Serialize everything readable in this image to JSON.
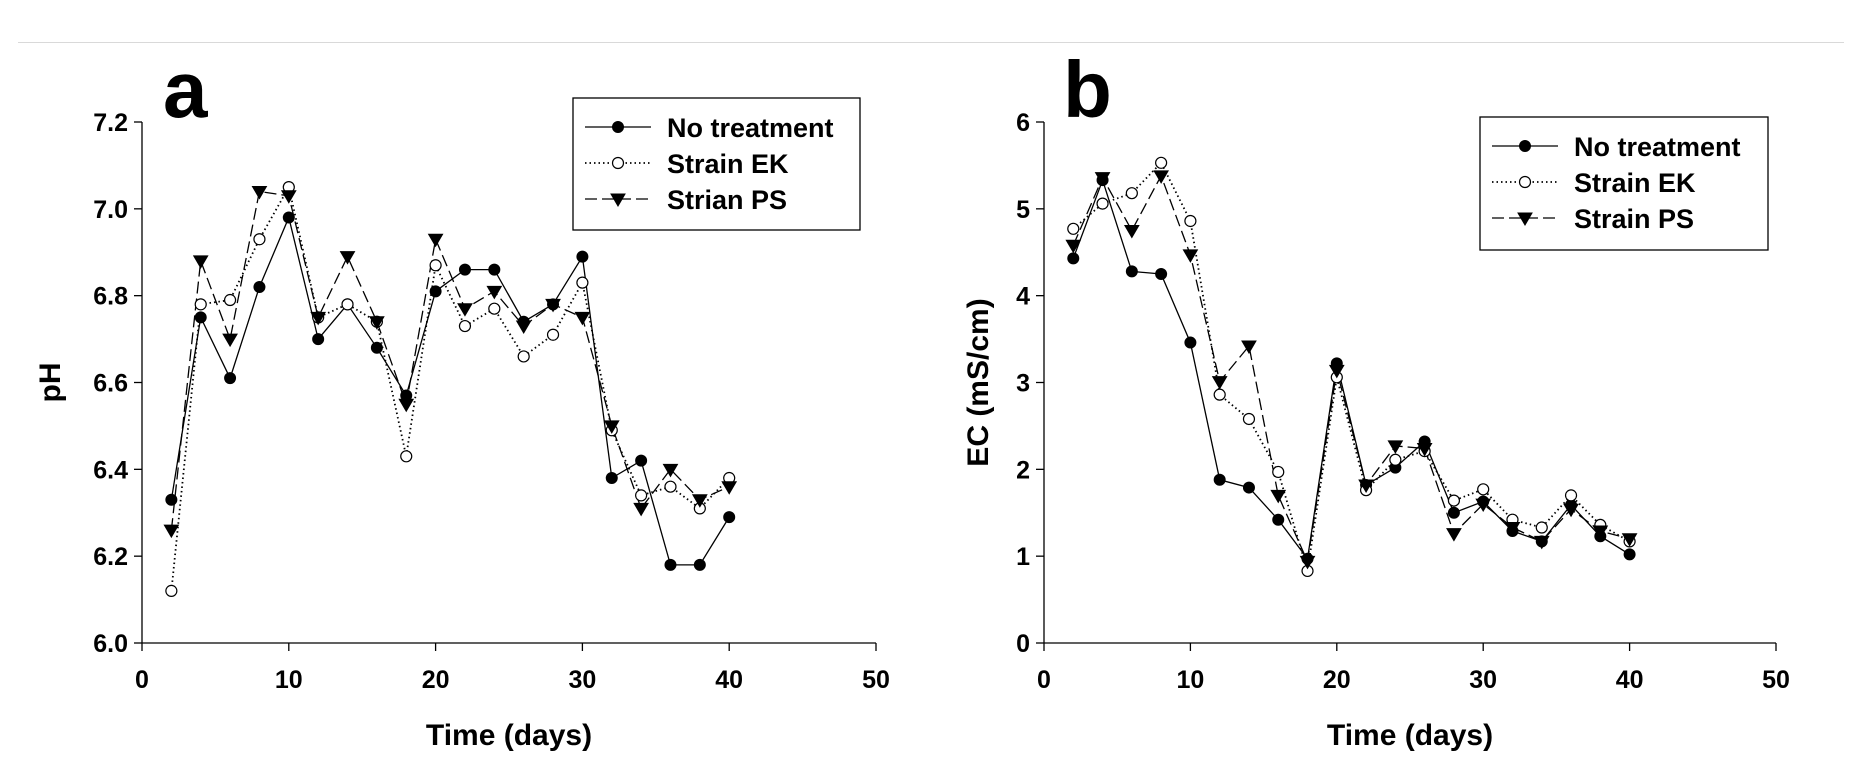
{
  "chart_data": [
    {
      "panel": "a",
      "type": "line",
      "title": "",
      "xlabel": "Time (days)",
      "ylabel": "pH",
      "xlim": [
        0,
        50
      ],
      "ylim": [
        6.0,
        7.2
      ],
      "xticks": [
        0,
        10,
        20,
        30,
        40,
        50
      ],
      "yticks": [
        6.0,
        6.2,
        6.4,
        6.6,
        6.8,
        7.0,
        7.2
      ],
      "ytick_labels": [
        "6.0",
        "6.2",
        "6.4",
        "6.6",
        "6.8",
        "7.0",
        "7.2"
      ],
      "grid": false,
      "legend_position": "top-right",
      "x": [
        2,
        4,
        6,
        8,
        10,
        12,
        14,
        16,
        18,
        20,
        22,
        24,
        26,
        28,
        30,
        32,
        34,
        36,
        38,
        40
      ],
      "series": [
        {
          "name": "No treatment",
          "marker": "filled-circle",
          "line": "solid",
          "values": [
            6.33,
            6.75,
            6.61,
            6.82,
            6.98,
            6.7,
            6.78,
            6.68,
            6.57,
            6.81,
            6.86,
            6.86,
            6.74,
            6.78,
            6.89,
            6.38,
            6.42,
            6.18,
            6.18,
            6.29
          ]
        },
        {
          "name": "Strain EK",
          "marker": "open-circle",
          "line": "dotted",
          "values": [
            6.12,
            6.78,
            6.79,
            6.93,
            7.05,
            6.75,
            6.78,
            6.74,
            6.43,
            6.87,
            6.73,
            6.77,
            6.66,
            6.71,
            6.83,
            6.49,
            6.34,
            6.36,
            6.31,
            6.38
          ]
        },
        {
          "name": "Strian PS",
          "marker": "filled-triangle-down",
          "line": "dashed",
          "values": [
            6.26,
            6.88,
            6.7,
            7.04,
            7.03,
            6.75,
            6.89,
            6.74,
            6.55,
            6.93,
            6.77,
            6.81,
            6.73,
            6.78,
            6.75,
            6.5,
            6.31,
            6.4,
            6.33,
            6.36
          ]
        }
      ]
    },
    {
      "panel": "b",
      "type": "line",
      "title": "",
      "xlabel": "Time (days)",
      "ylabel": "EC (mS/cm)",
      "xlim": [
        0,
        50
      ],
      "ylim": [
        0,
        6
      ],
      "xticks": [
        0,
        10,
        20,
        30,
        40,
        50
      ],
      "yticks": [
        0,
        1,
        2,
        3,
        4,
        5,
        6
      ],
      "ytick_labels": [
        "0",
        "1",
        "2",
        "3",
        "4",
        "5",
        "6"
      ],
      "grid": false,
      "legend_position": "top-right",
      "x": [
        2,
        4,
        6,
        8,
        10,
        12,
        14,
        16,
        18,
        20,
        22,
        24,
        26,
        28,
        30,
        32,
        34,
        36,
        38,
        40
      ],
      "series": [
        {
          "name": "No treatment",
          "marker": "filled-circle",
          "line": "solid",
          "values": [
            4.43,
            5.33,
            4.28,
            4.25,
            3.46,
            1.88,
            1.79,
            1.42,
            0.97,
            3.22,
            1.82,
            2.02,
            2.32,
            1.5,
            1.63,
            1.29,
            1.17,
            1.59,
            1.23,
            1.02
          ]
        },
        {
          "name": "Strain EK",
          "marker": "open-circle",
          "line": "dotted",
          "values": [
            4.77,
            5.06,
            5.18,
            5.53,
            4.86,
            2.86,
            2.58,
            1.97,
            0.83,
            3.06,
            1.76,
            2.11,
            2.21,
            1.64,
            1.77,
            1.42,
            1.33,
            1.7,
            1.36,
            1.17
          ]
        },
        {
          "name": "Strain PS",
          "marker": "filled-triangle-down",
          "line": "dashed",
          "values": [
            4.58,
            5.36,
            4.75,
            5.38,
            4.47,
            3.01,
            3.42,
            1.7,
            0.94,
            3.14,
            1.82,
            2.27,
            2.24,
            1.26,
            1.6,
            1.33,
            1.17,
            1.54,
            1.29,
            1.2
          ]
        }
      ]
    }
  ]
}
